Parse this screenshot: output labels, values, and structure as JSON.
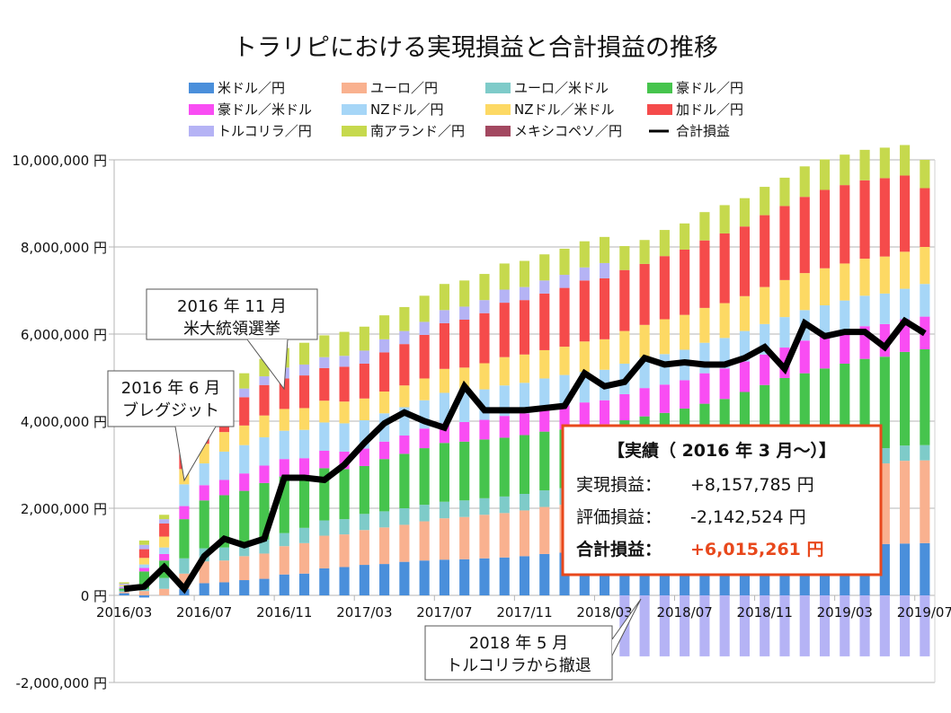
{
  "chart_data": {
    "type": "bar",
    "stacked": true,
    "title": "トラリピにおける実現損益と合計損益の推移",
    "xlabel": "",
    "ylabel": "",
    "ylim": [
      -2000000,
      10000000
    ],
    "yticks": [
      -2000000,
      0,
      2000000,
      4000000,
      6000000,
      8000000,
      10000000
    ],
    "ytick_labels": [
      "-2,000,000 円",
      "0 円",
      "2,000,000 円",
      "4,000,000 円",
      "6,000,000 円",
      "8,000,000 円",
      "10,000,000 円"
    ],
    "grid": true,
    "legend_position": "top",
    "categories": [
      "2016/03",
      "2016/04",
      "2016/05",
      "2016/06",
      "2016/07",
      "2016/08",
      "2016/09",
      "2016/10",
      "2016/11",
      "2016/12",
      "2017/01",
      "2017/02",
      "2017/03",
      "2017/04",
      "2017/05",
      "2017/06",
      "2017/07",
      "2017/08",
      "2017/09",
      "2017/10",
      "2017/11",
      "2017/12",
      "2018/01",
      "2018/02",
      "2018/03",
      "2018/04",
      "2018/05",
      "2018/06",
      "2018/07",
      "2018/08",
      "2018/09",
      "2018/10",
      "2018/11",
      "2018/12",
      "2019/01",
      "2019/02",
      "2019/03",
      "2019/04",
      "2019/05",
      "2019/06",
      "2019/07"
    ],
    "xtick_labels": [
      "2016/03",
      "2016/07",
      "2016/11",
      "2017/03",
      "2017/07",
      "2017/11",
      "2018/03",
      "2018/07",
      "2018/11",
      "2019/03",
      "2019/07"
    ],
    "series": [
      {
        "name": "米ドル／円",
        "color": "#4a8fdb",
        "values": [
          50000,
          -50000,
          0,
          150000,
          280000,
          300000,
          350000,
          380000,
          480000,
          500000,
          620000,
          650000,
          700000,
          720000,
          770000,
          800000,
          820000,
          830000,
          850000,
          870000,
          900000,
          950000,
          980000,
          1000000,
          1020000,
          1030000,
          1050000,
          1060000,
          1080000,
          1090000,
          1100000,
          1110000,
          1120000,
          1130000,
          1140000,
          1150000,
          1160000,
          1170000,
          1180000,
          1190000,
          1200000
        ]
      },
      {
        "name": "ユーロ／円",
        "color": "#f9b18f",
        "values": [
          30000,
          100000,
          150000,
          350000,
          500000,
          500000,
          550000,
          580000,
          650000,
          700000,
          750000,
          750000,
          800000,
          840000,
          850000,
          900000,
          950000,
          970000,
          1000000,
          1020000,
          1050000,
          1080000,
          1100000,
          1150000,
          1200000,
          1250000,
          1300000,
          1350000,
          1400000,
          1450000,
          1500000,
          1550000,
          1600000,
          1650000,
          1700000,
          1750000,
          1800000,
          1850000,
          1850000,
          1900000,
          1900000
        ]
      },
      {
        "name": "ユーロ／米ドル",
        "color": "#7ecbc9",
        "values": [
          30000,
          50000,
          250000,
          350000,
          300000,
          300000,
          300000,
          320000,
          300000,
          350000,
          350000,
          350000,
          370000,
          370000,
          380000,
          380000,
          380000,
          380000,
          380000,
          380000,
          380000,
          380000,
          380000,
          380000,
          360000,
          360000,
          360000,
          360000,
          360000,
          360000,
          360000,
          360000,
          360000,
          360000,
          360000,
          360000,
          360000,
          360000,
          350000,
          350000,
          350000
        ]
      },
      {
        "name": "豪ドル／円",
        "color": "#46c44d",
        "values": [
          50000,
          400000,
          400000,
          900000,
          1100000,
          1200000,
          1200000,
          1300000,
          1300000,
          1200000,
          1200000,
          1150000,
          1100000,
          1200000,
          1250000,
          1300000,
          1350000,
          1350000,
          1350000,
          1350000,
          1350000,
          1350000,
          1350000,
          1350000,
          1350000,
          1380000,
          1400000,
          1420000,
          1450000,
          1500000,
          1550000,
          1650000,
          1750000,
          1850000,
          1900000,
          1950000,
          2000000,
          2050000,
          2100000,
          2150000,
          2200000
        ]
      },
      {
        "name": "豪ドル／米ドル",
        "color": "#f94df3",
        "values": [
          20000,
          80000,
          150000,
          300000,
          350000,
          350000,
          400000,
          400000,
          400000,
          400000,
          400000,
          400000,
          400000,
          400000,
          420000,
          450000,
          450000,
          450000,
          450000,
          500000,
          500000,
          520000,
          550000,
          550000,
          550000,
          600000,
          650000,
          650000,
          650000,
          700000,
          700000,
          700000,
          700000,
          700000,
          750000,
          750000,
          750000,
          750000,
          750000,
          750000,
          750000
        ]
      },
      {
        "name": "NZドル／円",
        "color": "#a6d6f7",
        "values": [
          30000,
          80000,
          150000,
          500000,
          500000,
          650000,
          650000,
          650000,
          650000,
          650000,
          650000,
          650000,
          650000,
          650000,
          650000,
          650000,
          700000,
          700000,
          700000,
          700000,
          700000,
          700000,
          700000,
          700000,
          700000,
          700000,
          700000,
          700000,
          700000,
          700000,
          700000,
          700000,
          700000,
          700000,
          700000,
          700000,
          700000,
          700000,
          700000,
          700000,
          750000
        ]
      },
      {
        "name": "NZドル／米ドル",
        "color": "#fdd964",
        "values": [
          30000,
          150000,
          250000,
          350000,
          450000,
          450000,
          450000,
          500000,
          500000,
          500000,
          500000,
          500000,
          500000,
          500000,
          500000,
          500000,
          550000,
          550000,
          600000,
          650000,
          650000,
          650000,
          650000,
          700000,
          700000,
          750000,
          750000,
          800000,
          800000,
          800000,
          800000,
          800000,
          850000,
          850000,
          850000,
          850000,
          850000,
          850000,
          850000,
          850000,
          850000
        ]
      },
      {
        "name": "加ドル／円",
        "color": "#f54b4b",
        "values": [
          0,
          200000,
          300000,
          400000,
          550000,
          650000,
          650000,
          700000,
          700000,
          750000,
          750000,
          800000,
          800000,
          900000,
          950000,
          1000000,
          1050000,
          1100000,
          1150000,
          1250000,
          1250000,
          1300000,
          1350000,
          1400000,
          1400000,
          1400000,
          1400000,
          1450000,
          1500000,
          1550000,
          1600000,
          1600000,
          1650000,
          1700000,
          1750000,
          1800000,
          1800000,
          1800000,
          1800000,
          1750000,
          1350000
        ]
      },
      {
        "name": "トルコリラ／円",
        "color": "#b5b3f5",
        "values": [
          30000,
          100000,
          100000,
          150000,
          200000,
          200000,
          200000,
          200000,
          250000,
          250000,
          250000,
          250000,
          300000,
          300000,
          300000,
          300000,
          300000,
          300000,
          300000,
          300000,
          300000,
          300000,
          300000,
          300000,
          350000,
          -1400000,
          -1400000,
          -1400000,
          -1400000,
          -1400000,
          -1400000,
          -1400000,
          -1400000,
          -1400000,
          -1400000,
          -1400000,
          -1400000,
          -1400000,
          -1400000,
          -1400000,
          -1400000
        ]
      },
      {
        "name": "南アランド／円",
        "color": "#c6d94d",
        "values": [
          30000,
          100000,
          100000,
          150000,
          250000,
          300000,
          350000,
          400000,
          450000,
          500000,
          500000,
          550000,
          550000,
          550000,
          550000,
          600000,
          600000,
          600000,
          600000,
          600000,
          600000,
          600000,
          600000,
          600000,
          600000,
          550000,
          550000,
          600000,
          600000,
          650000,
          650000,
          650000,
          650000,
          650000,
          700000,
          700000,
          700000,
          700000,
          700000,
          700000,
          650000
        ]
      },
      {
        "name": "メキシコペソ／円",
        "color": "#a34860",
        "values": [
          0,
          0,
          0,
          0,
          0,
          0,
          0,
          0,
          0,
          0,
          0,
          0,
          0,
          0,
          0,
          0,
          0,
          0,
          0,
          0,
          0,
          0,
          0,
          0,
          0,
          0,
          0,
          0,
          0,
          0,
          0,
          0,
          0,
          0,
          0,
          0,
          0,
          0,
          0,
          0,
          0
        ]
      }
    ],
    "line_series": {
      "name": "合計損益",
      "color": "#000000",
      "values": [
        150000,
        200000,
        650000,
        150000,
        900000,
        1300000,
        1150000,
        1300000,
        2700000,
        2700000,
        2650000,
        3000000,
        3500000,
        3950000,
        4200000,
        4000000,
        3850000,
        4800000,
        4250000,
        4250000,
        4250000,
        4300000,
        4350000,
        5100000,
        4800000,
        4900000,
        5450000,
        5300000,
        5350000,
        5300000,
        5300000,
        5450000,
        5700000,
        5200000,
        6250000,
        5950000,
        6050000,
        6050000,
        5700000,
        6300000,
        6015261
      ]
    },
    "annotations": [
      {
        "line1": "2016 年 6 月",
        "line2": "ブレグジット",
        "category": "2016/06"
      },
      {
        "line1": "2016 年 11 月",
        "line2": "米大統領選挙",
        "category": "2016/11"
      },
      {
        "line1": "2018 年 5 月",
        "line2": "トルコリラから撤退",
        "category": "2018/05"
      }
    ],
    "summary_box": {
      "heading": "【実績（ 2016 年 3 月〜）】",
      "realized_label": "実現損益：",
      "realized_value": "+8,157,785 円",
      "unrealized_label": "評価損益：",
      "unrealized_value": "-2,142,524 円",
      "total_label": "合計損益：",
      "total_value": "+6,015,261 円",
      "border_color": "#e8481c",
      "accent_color": "#e8481c"
    }
  }
}
